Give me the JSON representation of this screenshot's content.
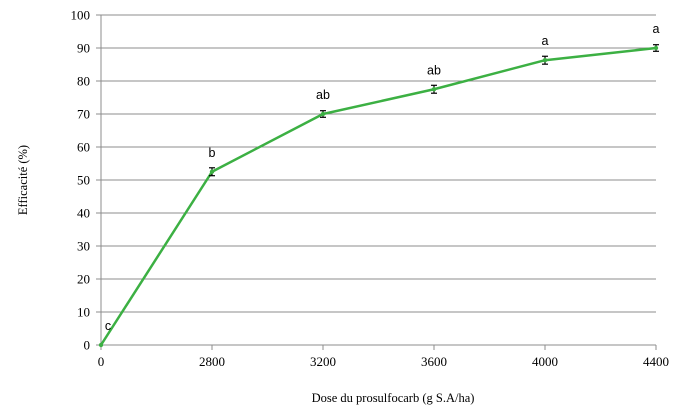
{
  "chart_data": {
    "type": "line",
    "title": "",
    "xlabel": "Dose du prosulfocarb (g S.A/ha)",
    "ylabel": "Efficacité (%)",
    "categories": [
      "0",
      "2800",
      "3200",
      "3600",
      "4000",
      "4400"
    ],
    "ylim": [
      0,
      100
    ],
    "yticks": [
      0,
      10,
      20,
      30,
      40,
      50,
      60,
      70,
      80,
      90,
      100
    ],
    "grid": true,
    "legend": "none",
    "series": [
      {
        "values": [
          0,
          52.5,
          70,
          77.5,
          86.3,
          90
        ],
        "errors": [
          0,
          1.2,
          1.0,
          1.2,
          1.2,
          1.0
        ],
        "labels": [
          "c",
          "b",
          "ab",
          "ab",
          "a",
          "a"
        ],
        "color": "#3cb043"
      }
    ]
  }
}
